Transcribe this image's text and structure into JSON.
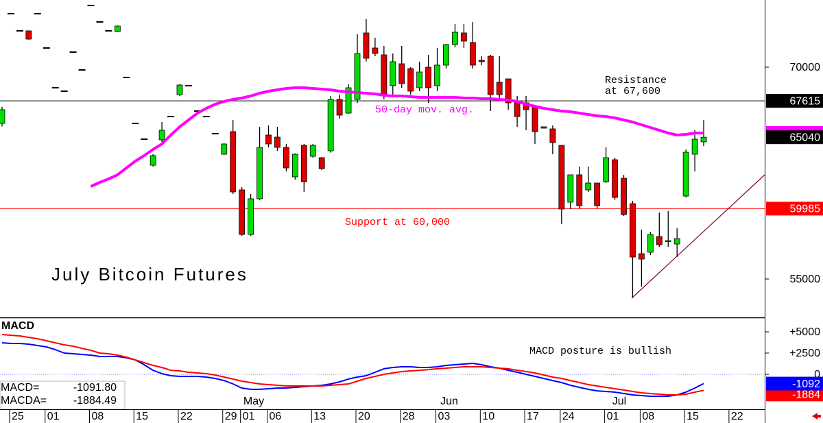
{
  "chart_data": [
    {
      "type": "candlestick",
      "title": "July Bitcoin Futures",
      "categories": [
        null,
        "25",
        null,
        null,
        null,
        "01",
        null,
        null,
        null,
        null,
        "08",
        null,
        null,
        null,
        null,
        "15",
        null,
        null,
        null,
        null,
        "22",
        null,
        null,
        null,
        null,
        "29",
        null,
        "01",
        null,
        null,
        "06",
        null,
        null,
        null,
        null,
        "13",
        null,
        null,
        null,
        null,
        "20",
        null,
        null,
        null,
        null,
        "28",
        null,
        null,
        null,
        "03",
        null,
        null,
        null,
        null,
        "10",
        null,
        null,
        null,
        null,
        "17",
        null,
        null,
        null,
        "24",
        null,
        null,
        null,
        null,
        "01",
        null,
        null,
        null,
        "08",
        null,
        null,
        null,
        null,
        "15",
        null,
        null,
        null,
        null,
        "22",
        null,
        null,
        null
      ],
      "open": [
        66020,
        73786,
        72573,
        72573,
        73786,
        71359,
        68544,
        68301,
        71068,
        69806,
        74369,
        73204,
        72573,
        72524,
        69272,
        66020,
        64904,
        63058,
        64855,
        66505,
        68059,
        68690,
        66894,
        66505,
        65292,
        63835,
        65438,
        61312,
        58156,
        60681,
        65195,
        65049,
        64321,
        62234,
        64467,
        63690,
        63592,
        64078,
        67718,
        66748,
        67718,
        72427,
        71359,
        70874,
        68690,
        70243,
        69903,
        68544,
        70000,
        68690,
        70146,
        71602,
        72427,
        71748,
        70486,
        70777,
        68932,
        69175,
        67573,
        67476,
        67233,
        65780,
        65632,
        64467,
        60438,
        62380,
        61312,
        61797,
        61894,
        63446,
        62137,
        60341,
        56797,
        56894,
        58011,
        57670,
        57476,
        60875,
        63835,
        64710,
        null,
        null,
        null,
        null,
        null,
        null
      ],
      "high": [
        67200,
        73786,
        72573,
        72600,
        73786,
        71359,
        68544,
        68301,
        71068,
        69806,
        74369,
        73204,
        72573,
        72950,
        69272,
        66020,
        64904,
        63835,
        66117,
        66505,
        68800,
        68690,
        66894,
        66505,
        65292,
        64600,
        66262,
        61506,
        61020,
        65777,
        65875,
        65777,
        64564,
        63900,
        64564,
        64564,
        63640,
        67961,
        68059,
        68787,
        72330,
        73398,
        72088,
        71505,
        70971,
        71505,
        70000,
        70389,
        70874,
        71359,
        71650,
        73058,
        73058,
        73204,
        70777,
        70874,
        70777,
        69175,
        67961,
        67961,
        67233,
        65780,
        65875,
        64467,
        62380,
        62962,
        62962,
        61797,
        64321,
        63592,
        62380,
        60535,
        58496,
        58350,
        59710,
        59807,
        58593,
        64175,
        65535,
        66262,
        null,
        null,
        null,
        null,
        null,
        null
      ],
      "low": [
        65800,
        73786,
        72573,
        71950,
        73786,
        71359,
        68544,
        68301,
        71068,
        69806,
        74369,
        73204,
        72573,
        72480,
        69272,
        66020,
        64904,
        62962,
        64709,
        66505,
        67950,
        68690,
        66894,
        66505,
        65292,
        63800,
        61020,
        58059,
        58059,
        60600,
        64321,
        64078,
        62622,
        62040,
        61166,
        63592,
        62720,
        63950,
        66360,
        66700,
        67476,
        70400,
        70777,
        67718,
        68059,
        68544,
        68059,
        68301,
        67476,
        68300,
        69900,
        71400,
        71359,
        69903,
        70146,
        66894,
        67670,
        66990,
        65777,
        65535,
        64564,
        65680,
        63835,
        58884,
        59952,
        60000,
        61166,
        60000,
        61800,
        60600,
        59467,
        53640,
        54467,
        56700,
        57283,
        57283,
        56554,
        60777,
        62622,
        64418,
        null,
        null,
        null,
        null,
        null,
        null
      ],
      "close": [
        66990,
        73786,
        72573,
        71990,
        73786,
        71359,
        68544,
        68301,
        71068,
        69806,
        74369,
        73204,
        72573,
        72913,
        69272,
        66020,
        64904,
        63738,
        65535,
        66505,
        68738,
        68690,
        66894,
        66505,
        65292,
        64564,
        61166,
        58156,
        60681,
        64321,
        64564,
        64321,
        62865,
        63835,
        61894,
        64467,
        62817,
        67718,
        66602,
        68544,
        70971,
        70631,
        70971,
        67961,
        70389,
        68835,
        68301,
        69660,
        68544,
        70146,
        71602,
        72476,
        71845,
        70146,
        70389,
        68059,
        68059,
        67476,
        66505,
        66990,
        65438,
        65680,
        64661,
        59952,
        62380,
        60195,
        61797,
        60195,
        63592,
        60777,
        59564,
        56554,
        56408,
        58156,
        57428,
        57720,
        57865,
        63981,
        64904,
        65040,
        null,
        null,
        null,
        null,
        null,
        null
      ],
      "up_color": "#00dd00",
      "down_color": "#dd0000",
      "ylim": [
        52282,
        74757
      ],
      "yticks": [
        55000,
        70000
      ],
      "series": [
        {
          "name": "50-day mov. avg.",
          "color": "#ff00ff",
          "values": [
            null,
            null,
            null,
            null,
            null,
            null,
            null,
            null,
            null,
            null,
            61554,
            61846,
            62088,
            62380,
            62865,
            63350,
            63738,
            64175,
            64564,
            65195,
            65777,
            66262,
            66748,
            67088,
            67379,
            67573,
            67718,
            67816,
            67961,
            68155,
            68301,
            68398,
            68495,
            68544,
            68544,
            68495,
            68447,
            68398,
            68301,
            68253,
            68204,
            68155,
            68107,
            68010,
            67961,
            67961,
            67913,
            67864,
            67864,
            67864,
            67864,
            67864,
            67816,
            67816,
            67767,
            67767,
            67718,
            67670,
            67573,
            67379,
            67233,
            67088,
            66990,
            66894,
            66845,
            66748,
            66651,
            66554,
            66505,
            66408,
            66262,
            66117,
            65923,
            65729,
            65535,
            65340,
            65195,
            65243,
            65340,
            65341,
            null,
            null,
            null,
            null,
            null,
            null
          ]
        }
      ],
      "reference_lines": [
        {
          "value": 67615,
          "color": "#000000"
        },
        {
          "value": 59985,
          "color": "#ff0000"
        }
      ],
      "annotations": {
        "resistance": [
          "Resistance",
          "at 67,600"
        ],
        "support": "Support at 60,000"
      },
      "month_labels": [
        "May",
        "Jun",
        "Jul"
      ]
    },
    {
      "type": "line",
      "title": "MACD",
      "annotation": "MACD posture is bullish",
      "ylim": [
        -4113,
        6533
      ],
      "yticks": [
        {
          "value": 5000,
          "label": "+5000"
        },
        {
          "value": 2500,
          "label": "+2500"
        },
        0
      ],
      "series": [
        {
          "name": "MACD=",
          "color": "#0000ff",
          "readout": "-1091.80",
          "box_label": "-1092",
          "values": [
            3710,
            3630,
            3630,
            3550,
            3390,
            3230,
            2900,
            2500,
            2420,
            2340,
            2260,
            2100,
            2100,
            2100,
            1940,
            1690,
            1130,
            480,
            80,
            -160,
            -240,
            -240,
            -240,
            -320,
            -480,
            -730,
            -1130,
            -1610,
            -1770,
            -1770,
            -1690,
            -1610,
            -1610,
            -1530,
            -1450,
            -1370,
            -1290,
            -1130,
            -890,
            -560,
            -320,
            -160,
            240,
            650,
            810,
            890,
            890,
            810,
            810,
            890,
            1050,
            1130,
            1210,
            1290,
            1130,
            890,
            730,
            480,
            240,
            0,
            -240,
            -480,
            -730,
            -970,
            -1290,
            -1530,
            -1770,
            -1940,
            -2020,
            -2100,
            -2260,
            -2420,
            -2500,
            -2580,
            -2580,
            -2580,
            -2420,
            -2100,
            -1610,
            -1091.8,
            null,
            null,
            null,
            null,
            null,
            null
          ]
        },
        {
          "name": "MACDA=",
          "color": "#ff0000",
          "readout": "-1884.49",
          "box_label": "-1884",
          "values": [
            4680,
            4600,
            4520,
            4350,
            4190,
            3950,
            3710,
            3470,
            3310,
            3060,
            2820,
            2500,
            2420,
            2260,
            2020,
            1690,
            1370,
            1050,
            810,
            480,
            400,
            240,
            160,
            80,
            -80,
            -320,
            -560,
            -810,
            -970,
            -1130,
            -1210,
            -1290,
            -1370,
            -1370,
            -1370,
            -1370,
            -1370,
            -1290,
            -1210,
            -1130,
            -810,
            -480,
            -240,
            0,
            160,
            320,
            400,
            480,
            560,
            650,
            730,
            810,
            890,
            890,
            890,
            810,
            730,
            650,
            480,
            320,
            160,
            -80,
            -320,
            -480,
            -730,
            -970,
            -1210,
            -1370,
            -1530,
            -1690,
            -1850,
            -2020,
            -2180,
            -2260,
            -2340,
            -2420,
            -2420,
            -2340,
            -2100,
            -1884.49,
            null,
            null,
            null,
            null,
            null,
            null
          ]
        }
      ]
    }
  ]
}
